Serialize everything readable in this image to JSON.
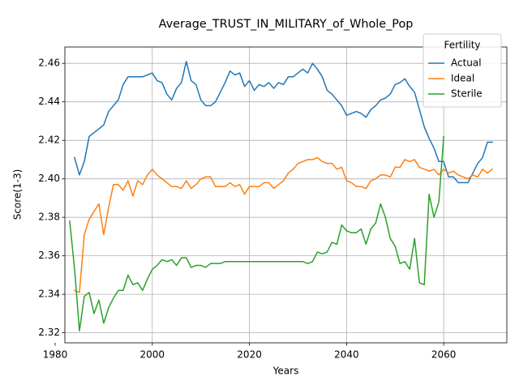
{
  "chart_data": {
    "type": "line",
    "title": "Average_TRUST_IN_MILITARY_of_Whole_Pop",
    "xlabel": "Years",
    "ylabel": "Score(1-3)",
    "xlim": [
      1982,
      2073
    ],
    "ylim": [
      2.3148,
      2.4685
    ],
    "xticks": [
      1980,
      2000,
      2020,
      2040,
      2060
    ],
    "yticks": [
      2.32,
      2.34,
      2.36,
      2.38,
      2.4,
      2.42,
      2.44,
      2.46
    ],
    "ytick_labels": [
      "2.32",
      "2.34",
      "2.36",
      "2.38",
      "2.40",
      "2.42",
      "2.44",
      "2.46"
    ],
    "grid": true,
    "legend": {
      "title": "Fertility",
      "placement": "top-right"
    },
    "series": [
      {
        "name": "Actual",
        "color": "#1f77b4",
        "x": [
          1984,
          1985,
          1986,
          1987,
          1988,
          1989,
          1990,
          1991,
          1992,
          1993,
          1994,
          1995,
          1996,
          1997,
          1998,
          1999,
          2000,
          2001,
          2002,
          2003,
          2004,
          2005,
          2006,
          2007,
          2008,
          2009,
          2010,
          2011,
          2012,
          2013,
          2014,
          2015,
          2016,
          2017,
          2018,
          2019,
          2020,
          2021,
          2022,
          2023,
          2024,
          2025,
          2026,
          2027,
          2028,
          2029,
          2030,
          2031,
          2032,
          2033,
          2034,
          2035,
          2036,
          2037,
          2038,
          2039,
          2040,
          2041,
          2042,
          2043,
          2044,
          2045,
          2046,
          2047,
          2048,
          2049,
          2050,
          2051,
          2052,
          2053,
          2054,
          2055,
          2056,
          2057,
          2058,
          2059,
          2060,
          2061,
          2062,
          2063,
          2064,
          2065,
          2066,
          2067,
          2068,
          2069,
          2070
        ],
        "values": [
          2.411,
          2.402,
          2.409,
          2.422,
          2.424,
          2.426,
          2.428,
          2.435,
          2.438,
          2.441,
          2.449,
          2.453,
          2.453,
          2.453,
          2.453,
          2.454,
          2.455,
          2.451,
          2.45,
          2.444,
          2.441,
          2.447,
          2.45,
          2.461,
          2.451,
          2.449,
          2.441,
          2.438,
          2.438,
          2.44,
          2.445,
          2.45,
          2.456,
          2.454,
          2.455,
          2.448,
          2.451,
          2.446,
          2.449,
          2.448,
          2.45,
          2.447,
          2.45,
          2.449,
          2.453,
          2.453,
          2.455,
          2.457,
          2.455,
          2.46,
          2.457,
          2.453,
          2.446,
          2.444,
          2.441,
          2.438,
          2.433,
          2.434,
          2.435,
          2.434,
          2.432,
          2.436,
          2.438,
          2.441,
          2.442,
          2.444,
          2.449,
          2.45,
          2.452,
          2.448,
          2.445,
          2.436,
          2.427,
          2.421,
          2.416,
          2.409,
          2.409,
          2.401,
          2.401,
          2.398,
          2.398,
          2.398,
          2.403,
          2.408,
          2.411,
          2.419,
          2.419
        ]
      },
      {
        "name": "Ideal",
        "color": "#ff7f0e",
        "x": [
          1984,
          1985,
          1986,
          1987,
          1988,
          1989,
          1990,
          1991,
          1992,
          1993,
          1994,
          1995,
          1996,
          1997,
          1998,
          1999,
          2000,
          2001,
          2002,
          2003,
          2004,
          2005,
          2006,
          2007,
          2008,
          2009,
          2010,
          2011,
          2012,
          2013,
          2014,
          2015,
          2016,
          2017,
          2018,
          2019,
          2020,
          2021,
          2022,
          2023,
          2024,
          2025,
          2026,
          2027,
          2028,
          2029,
          2030,
          2031,
          2032,
          2033,
          2034,
          2035,
          2036,
          2037,
          2038,
          2039,
          2040,
          2041,
          2042,
          2043,
          2044,
          2045,
          2046,
          2047,
          2048,
          2049,
          2050,
          2051,
          2052,
          2053,
          2054,
          2055,
          2056,
          2057,
          2058,
          2059,
          2060,
          2061,
          2062,
          2063,
          2064,
          2065,
          2066,
          2067,
          2068,
          2069,
          2070
        ],
        "values": [
          2.342,
          2.341,
          2.371,
          2.379,
          2.383,
          2.387,
          2.371,
          2.385,
          2.397,
          2.397,
          2.394,
          2.399,
          2.391,
          2.399,
          2.397,
          2.402,
          2.405,
          2.402,
          2.4,
          2.398,
          2.396,
          2.396,
          2.395,
          2.399,
          2.395,
          2.397,
          2.4,
          2.401,
          2.401,
          2.396,
          2.396,
          2.396,
          2.398,
          2.396,
          2.397,
          2.392,
          2.396,
          2.396,
          2.396,
          2.398,
          2.398,
          2.395,
          2.397,
          2.399,
          2.403,
          2.405,
          2.408,
          2.409,
          2.41,
          2.41,
          2.411,
          2.409,
          2.408,
          2.408,
          2.405,
          2.406,
          2.399,
          2.398,
          2.396,
          2.396,
          2.395,
          2.399,
          2.4,
          2.402,
          2.402,
          2.401,
          2.406,
          2.406,
          2.41,
          2.409,
          2.41,
          2.406,
          2.405,
          2.404,
          2.405,
          2.402,
          2.405,
          2.403,
          2.404,
          2.402,
          2.401,
          2.4,
          2.402,
          2.401,
          2.405,
          2.403,
          2.405
        ]
      },
      {
        "name": "Sterile",
        "color": "#2ca02c",
        "x": [
          1983,
          1984,
          1985,
          1986,
          1987,
          1988,
          1989,
          1990,
          1991,
          1992,
          1993,
          1994,
          1995,
          1996,
          1997,
          1998,
          1999,
          2000,
          2001,
          2002,
          2003,
          2004,
          2005,
          2006,
          2007,
          2008,
          2009,
          2010,
          2011,
          2012,
          2013,
          2014,
          2015,
          2016,
          2017,
          2018,
          2019,
          2020,
          2021,
          2022,
          2023,
          2024,
          2025,
          2026,
          2027,
          2028,
          2029,
          2030,
          2031,
          2032,
          2033,
          2034,
          2035,
          2036,
          2037,
          2038,
          2039,
          2040,
          2041,
          2042,
          2043,
          2044,
          2045,
          2046,
          2047,
          2048,
          2049,
          2050,
          2051,
          2052,
          2053,
          2054,
          2055,
          2056,
          2057,
          2058,
          2059,
          2060
        ],
        "values": [
          2.378,
          2.353,
          2.321,
          2.339,
          2.341,
          2.33,
          2.337,
          2.325,
          2.333,
          2.338,
          2.342,
          2.342,
          2.35,
          2.345,
          2.346,
          2.342,
          2.348,
          2.353,
          2.355,
          2.358,
          2.357,
          2.358,
          2.355,
          2.359,
          2.359,
          2.354,
          2.355,
          2.355,
          2.354,
          2.356,
          2.356,
          2.356,
          2.357,
          2.357,
          2.357,
          2.357,
          2.357,
          2.357,
          2.357,
          2.357,
          2.357,
          2.357,
          2.357,
          2.357,
          2.357,
          2.357,
          2.357,
          2.357,
          2.357,
          2.356,
          2.357,
          2.362,
          2.361,
          2.362,
          2.367,
          2.366,
          2.376,
          2.373,
          2.372,
          2.372,
          2.374,
          2.366,
          2.374,
          2.377,
          2.387,
          2.38,
          2.369,
          2.365,
          2.356,
          2.357,
          2.353,
          2.369,
          2.346,
          2.345,
          2.392,
          2.38,
          2.388,
          2.422
        ]
      }
    ]
  }
}
